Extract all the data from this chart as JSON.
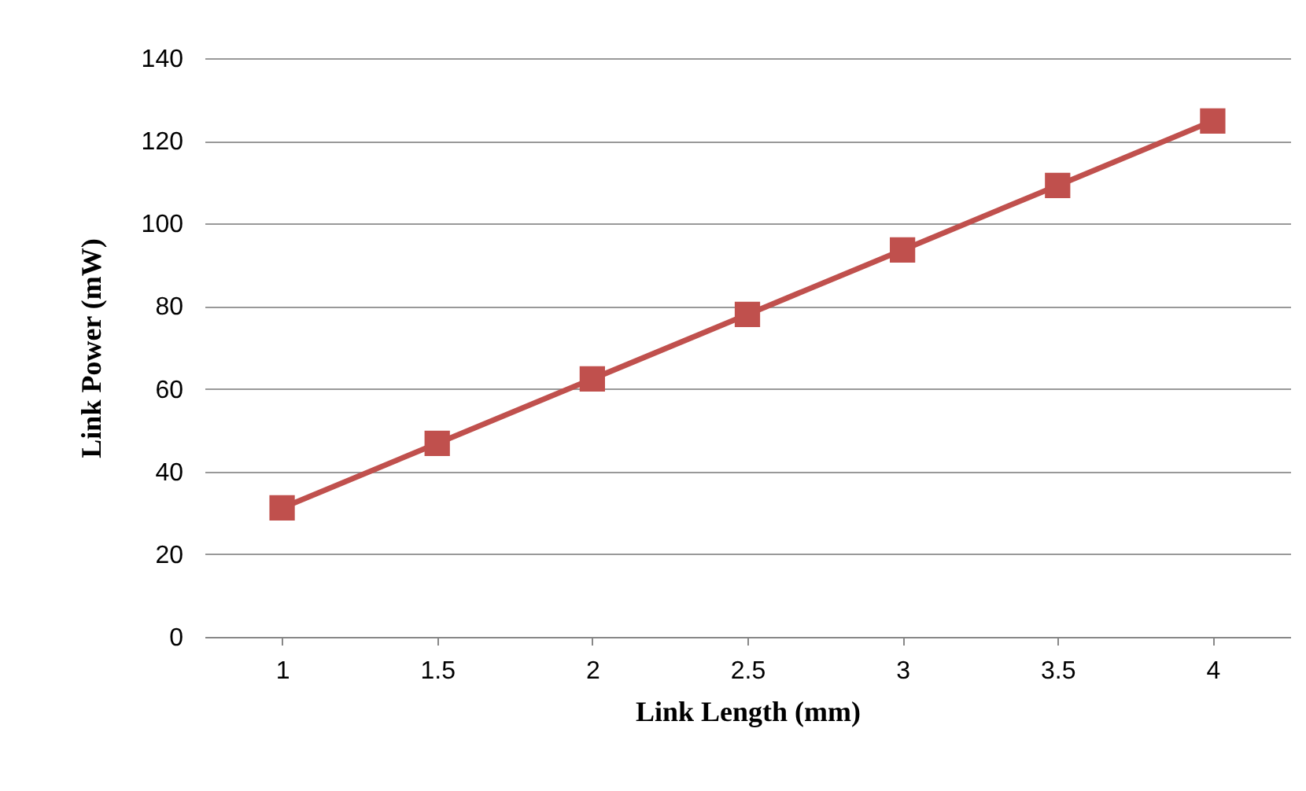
{
  "chart_data": {
    "type": "line",
    "xlabel": "Link Length (mm)",
    "ylabel": "Link Power (mW)",
    "categories": [
      "1",
      "1.5",
      "2",
      "2.5",
      "3",
      "3.5",
      "4"
    ],
    "series": [
      {
        "color": "#c0504d",
        "values": [
          31.2,
          46.8,
          62.4,
          78,
          93.6,
          109.2,
          124.8
        ]
      }
    ],
    "ylim": [
      0,
      140
    ],
    "yticks": [
      0,
      20,
      40,
      60,
      80,
      100,
      120,
      140
    ],
    "grid": "y",
    "marker": "square",
    "line_style": "solid",
    "legend": false
  }
}
